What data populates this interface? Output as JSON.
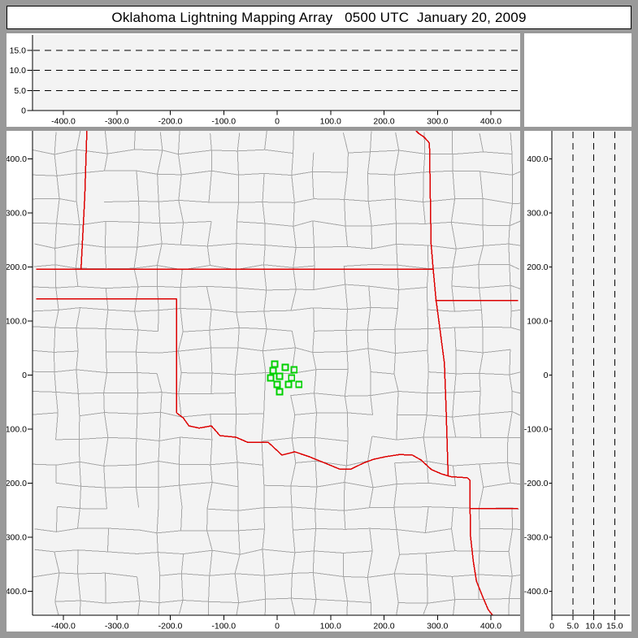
{
  "header": {
    "title": "Oklahoma Lightning Mapping Array   0500 UTC  January 20, 2009"
  },
  "colors": {
    "frame": "#999999",
    "panel_bg": "#ffffff",
    "plot_bg": "#f3f3f3",
    "county_line": "#a5a5a5",
    "state_border": "#dd0000",
    "station": "#00d000",
    "axis": "#000000",
    "title_text": "#000000"
  },
  "axes": {
    "east_west": {
      "tick_values": [
        -400,
        -300,
        -200,
        -100,
        0,
        100,
        200,
        300,
        400
      ],
      "tick_labels": [
        "-400.0",
        "-300.0",
        "-200.0",
        "-100.0",
        "0",
        "100.0",
        "200.0",
        "300.0",
        "400.0"
      ],
      "range_km": [
        -458,
        455
      ]
    },
    "north_south": {
      "tick_values": [
        400,
        300,
        200,
        100,
        0,
        -100,
        -200,
        -300,
        -400
      ],
      "tick_labels": [
        "400.0",
        "300.0",
        "200.0",
        "100.0",
        "0",
        "-100.0",
        "-200.0",
        "-300.0",
        "-400.0"
      ],
      "range_km": [
        -444,
        452
      ]
    },
    "altitude_top": {
      "tick_values": [
        15,
        10,
        5,
        0
      ],
      "tick_labels": [
        "15.0",
        "10.0",
        "5.0",
        "0"
      ],
      "dash_values": [
        5,
        10,
        15
      ],
      "range_km": [
        0,
        18.8
      ]
    },
    "altitude_right": {
      "tick_values": [
        0,
        5,
        10,
        15
      ],
      "tick_labels": [
        "0",
        "5.0",
        "10.0",
        "15.0"
      ],
      "dash_values": [
        5,
        10,
        15
      ],
      "range_km": [
        0,
        18.6
      ]
    }
  },
  "map_panel": {
    "stations_km": [
      [
        -4.5,
        20.3
      ],
      [
        15.0,
        14.3
      ],
      [
        -7.5,
        8.3
      ],
      [
        31.6,
        9.8
      ],
      [
        4.5,
        -2.3
      ],
      [
        -12.0,
        -5.3
      ],
      [
        27.1,
        -5.3
      ],
      [
        0.0,
        -17.3
      ],
      [
        21.1,
        -17.3
      ],
      [
        40.6,
        -17.3
      ],
      [
        4.5,
        -30.8
      ]
    ],
    "state_borders_km": {
      "colorado_kansas": [
        [
          -356,
          453
        ],
        [
          -360,
          330
        ],
        [
          -367,
          196
        ]
      ],
      "kansas_oklahoma_north": [
        [
          -451,
          196
        ],
        [
          292,
          196
        ]
      ],
      "panhandle_south": [
        [
          -451,
          141
        ],
        [
          -188,
          141
        ]
      ],
      "texas_oklahoma_100w": [
        [
          -188,
          141
        ],
        [
          -188,
          -70
        ]
      ],
      "red_river": [
        [
          -188,
          -70
        ],
        [
          -176,
          -79
        ],
        [
          -165,
          -94
        ],
        [
          -146,
          -98
        ],
        [
          -123,
          -94
        ],
        [
          -107,
          -112
        ],
        [
          -77,
          -115
        ],
        [
          -56,
          -124
        ],
        [
          -17,
          -124
        ],
        [
          9,
          -148
        ],
        [
          33,
          -142
        ],
        [
          60,
          -151
        ],
        [
          90,
          -163
        ],
        [
          117,
          -174
        ],
        [
          138,
          -174
        ],
        [
          161,
          -163
        ],
        [
          180,
          -156
        ],
        [
          203,
          -151
        ],
        [
          229,
          -147
        ],
        [
          253,
          -148
        ],
        [
          269,
          -157
        ],
        [
          289,
          -175
        ],
        [
          308,
          -183
        ],
        [
          325,
          -188
        ],
        [
          356,
          -190
        ]
      ],
      "kansas_missouri": [
        [
          260,
          452
        ],
        [
          265,
          447
        ],
        [
          274,
          441
        ],
        [
          281,
          434
        ],
        [
          285,
          429
        ],
        [
          288,
          243
        ],
        [
          292,
          196
        ]
      ],
      "oklahoma_arkansas": [
        [
          292,
          196
        ],
        [
          297,
          142
        ],
        [
          313,
          22
        ],
        [
          316,
          -58
        ],
        [
          320,
          -186
        ]
      ],
      "arkansas_missouri": [
        [
          296,
          138
        ],
        [
          451,
          138
        ]
      ],
      "texas_arkansas": [
        [
          356,
          -190
        ],
        [
          361,
          -195
        ],
        [
          361,
          -247
        ],
        [
          362,
          -299
        ],
        [
          367,
          -344
        ],
        [
          373,
          -381
        ],
        [
          385,
          -411
        ],
        [
          395,
          -434
        ],
        [
          403,
          -444
        ]
      ],
      "arkansas_louisiana": [
        [
          361,
          -247
        ],
        [
          451,
          -247
        ]
      ]
    }
  }
}
